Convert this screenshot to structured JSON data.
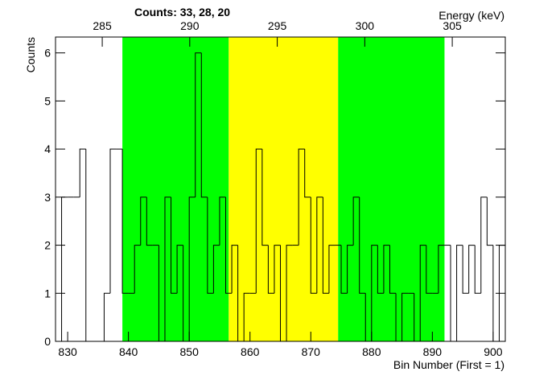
{
  "chart_data": {
    "type": "histogram",
    "title": "Counts:   33,   28,   20",
    "xlabel": "Bin Number (First = 1)",
    "ylabel": "Counts",
    "x2label": "Energy (keV)",
    "bins": [
      828,
      829,
      830,
      831,
      832,
      833,
      834,
      835,
      836,
      837,
      838,
      839,
      840,
      841,
      842,
      843,
      844,
      845,
      846,
      847,
      848,
      849,
      850,
      851,
      852,
      853,
      854,
      855,
      856,
      857,
      858,
      859,
      860,
      861,
      862,
      863,
      864,
      865,
      866,
      867,
      868,
      869,
      870,
      871,
      872,
      873,
      874,
      875,
      876,
      877,
      878,
      879,
      880,
      881,
      882,
      883,
      884,
      885,
      886,
      887,
      888,
      889,
      890,
      891,
      892,
      893,
      894,
      895,
      896,
      897,
      898,
      899,
      900,
      901,
      902
    ],
    "values": [
      0,
      3,
      3,
      3,
      4,
      0,
      0,
      0,
      1,
      4,
      4,
      1,
      1,
      2,
      3,
      2,
      2,
      0,
      3,
      1,
      2,
      0,
      3,
      6,
      3,
      1,
      2,
      3,
      1,
      2,
      0,
      1,
      1,
      4,
      2,
      1,
      2,
      0,
      2,
      2,
      4,
      3,
      1,
      3,
      1,
      2,
      2,
      1,
      2,
      3,
      1,
      0,
      2,
      1,
      2,
      1,
      0,
      1,
      1,
      0,
      2,
      1,
      1,
      2,
      2,
      0,
      2,
      1,
      2,
      1,
      3,
      2,
      0,
      2
    ],
    "color": "#000000",
    "regions": [
      {
        "start": 839,
        "end": 856.5,
        "color": "#00ff00"
      },
      {
        "start": 856.5,
        "end": 874.5,
        "color": "#ffff00"
      },
      {
        "start": 874.5,
        "end": 892,
        "color": "#00ff00"
      }
    ],
    "xlim": [
      828,
      902
    ],
    "xticks": [
      830,
      840,
      850,
      860,
      870,
      880,
      890,
      900
    ],
    "ylim": [
      0,
      6.33
    ],
    "yticks": [
      0,
      1,
      2,
      3,
      4,
      5,
      6
    ],
    "x2lim": [
      282.33,
      308.03
    ],
    "x2ticks": [
      285,
      290,
      295,
      300,
      305
    ]
  }
}
